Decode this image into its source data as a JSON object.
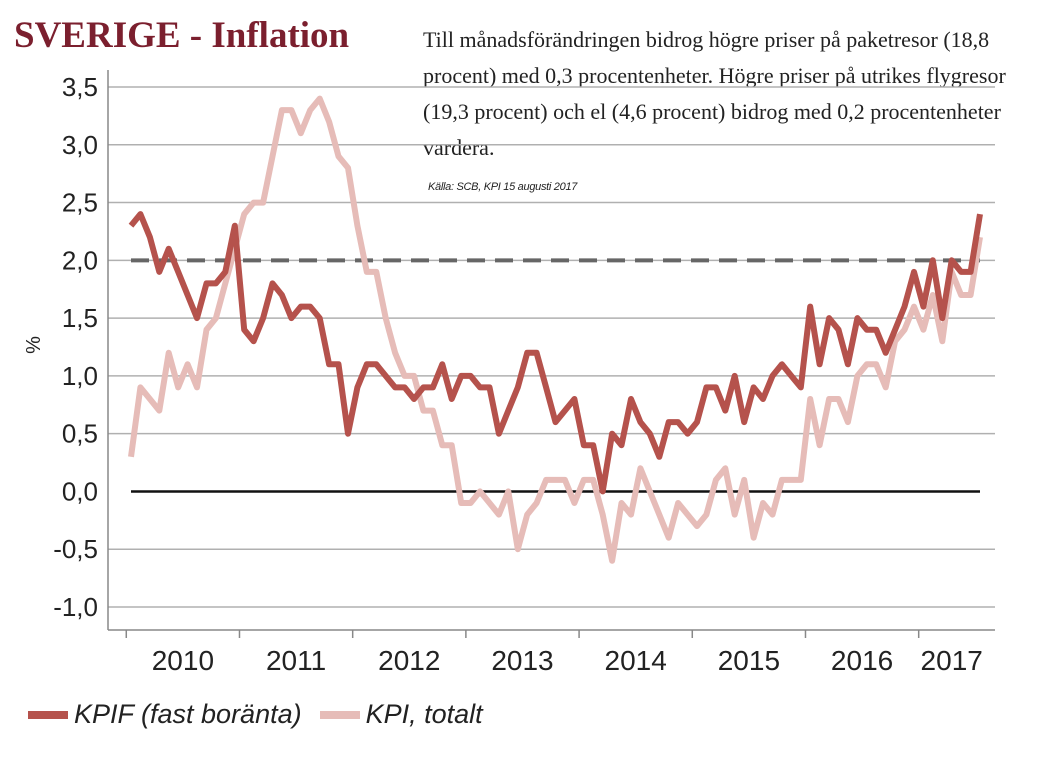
{
  "title": "SVERIGE - Inflation",
  "annotation": "Till månadsförändringen bidrog högre priser på paketresor (18,8 procent) med 0,3 procentenheter. Högre priser på utrikes flygresor (19,3 procent) och el (4,6 procent) bidrog med 0,2 procentenheter vardera.",
  "source": "Källa: SCB, KPI 15 augusti 2017",
  "colors": {
    "title": "#7b1f2e",
    "kpif": "#b5524c",
    "kpi": "#e6bcb8",
    "target": "#666666",
    "zero": "#111111",
    "grid": "#b0b0b0"
  },
  "chart_data": {
    "type": "line",
    "title": "SVERIGE - Inflation",
    "xlabel": "",
    "ylabel": "%",
    "ylim": [
      -1.0,
      3.5
    ],
    "yticks": [
      "3,5",
      "3,0",
      "2,5",
      "2,0",
      "1,5",
      "1,0",
      "0,5",
      "0,0",
      "-0,5",
      "-1,0"
    ],
    "yticks_values": [
      3.5,
      3.0,
      2.5,
      2.0,
      1.5,
      1.0,
      0.5,
      0.0,
      -0.5,
      -1.0
    ],
    "xticks": [
      "2010",
      "2011",
      "2012",
      "2013",
      "2014",
      "2015",
      "2016",
      "2017"
    ],
    "x_start": "2010-01",
    "x_end": "2017-07",
    "grid": true,
    "legend_position": "bottom-left",
    "reference_line": {
      "value": 2.0,
      "style": "dashed"
    },
    "series": [
      {
        "name": "KPIF (fast boränta)",
        "values": [
          2.3,
          2.4,
          2.2,
          1.9,
          2.1,
          1.9,
          1.7,
          1.5,
          1.8,
          1.8,
          1.9,
          2.3,
          1.4,
          1.3,
          1.5,
          1.8,
          1.7,
          1.5,
          1.6,
          1.6,
          1.5,
          1.1,
          1.1,
          0.5,
          0.9,
          1.1,
          1.1,
          1.0,
          0.9,
          0.9,
          0.8,
          0.9,
          0.9,
          1.1,
          0.8,
          1.0,
          1.0,
          0.9,
          0.9,
          0.5,
          0.7,
          0.9,
          1.2,
          1.2,
          0.9,
          0.6,
          0.7,
          0.8,
          0.4,
          0.4,
          0.0,
          0.5,
          0.4,
          0.8,
          0.6,
          0.5,
          0.3,
          0.6,
          0.6,
          0.5,
          0.6,
          0.9,
          0.9,
          0.7,
          1.0,
          0.6,
          0.9,
          0.8,
          1.0,
          1.1,
          1.0,
          0.9,
          1.6,
          1.1,
          1.5,
          1.4,
          1.1,
          1.5,
          1.4,
          1.4,
          1.2,
          1.4,
          1.6,
          1.9,
          1.6,
          2.0,
          1.5,
          2.0,
          1.9,
          1.9,
          2.4
        ]
      },
      {
        "name": "KPI, totalt",
        "values": [
          0.3,
          0.9,
          0.8,
          0.7,
          1.2,
          0.9,
          1.1,
          0.9,
          1.4,
          1.5,
          1.8,
          2.1,
          2.4,
          2.5,
          2.5,
          2.9,
          3.3,
          3.3,
          3.1,
          3.3,
          3.4,
          3.2,
          2.9,
          2.8,
          2.3,
          1.9,
          1.9,
          1.5,
          1.2,
          1.0,
          1.0,
          0.7,
          0.7,
          0.4,
          0.4,
          -0.1,
          -0.1,
          0.0,
          -0.1,
          -0.2,
          0.0,
          -0.5,
          -0.2,
          -0.1,
          0.1,
          0.1,
          0.1,
          -0.1,
          0.1,
          0.1,
          -0.2,
          -0.6,
          -0.1,
          -0.2,
          0.2,
          0.0,
          -0.2,
          -0.4,
          -0.1,
          -0.2,
          -0.3,
          -0.2,
          0.1,
          0.2,
          -0.2,
          0.1,
          -0.4,
          -0.1,
          -0.2,
          0.1,
          0.1,
          0.1,
          0.8,
          0.4,
          0.8,
          0.8,
          0.6,
          1.0,
          1.1,
          1.1,
          0.9,
          1.3,
          1.4,
          1.6,
          1.4,
          1.7,
          1.3,
          1.9,
          1.7,
          1.7,
          2.2
        ]
      }
    ]
  }
}
